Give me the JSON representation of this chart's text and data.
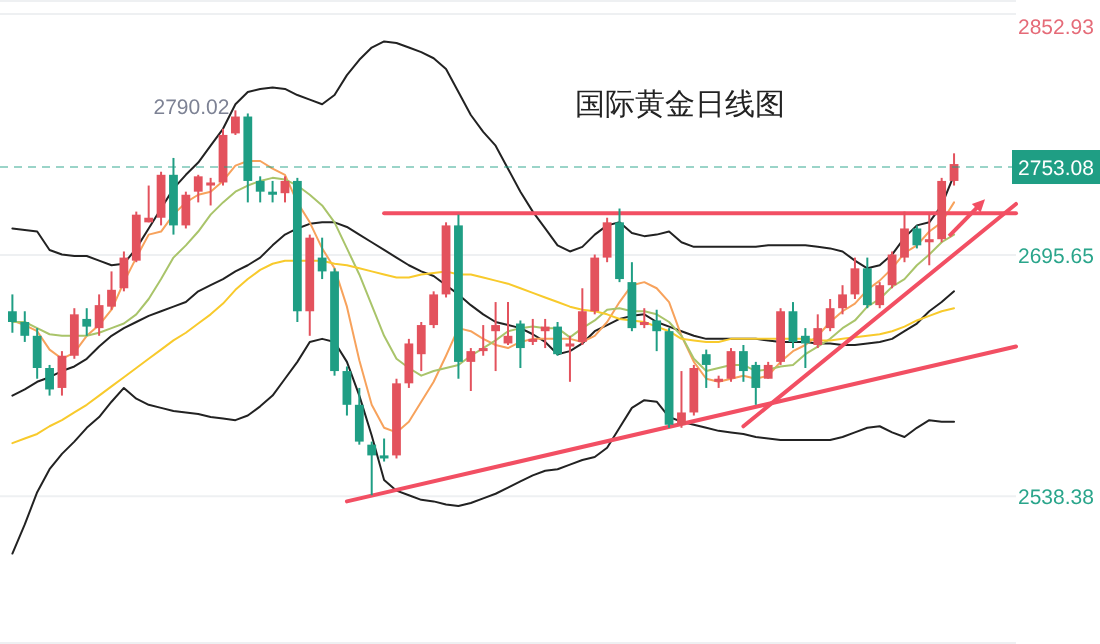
{
  "chart_data": {
    "type": "candlestick",
    "title": "国际黄金日线图",
    "categories": [
      null,
      null,
      null,
      null,
      null,
      null,
      null,
      null,
      null,
      null,
      null,
      null,
      null,
      null,
      null,
      null,
      null,
      null,
      null,
      null,
      null,
      null,
      null,
      null,
      null,
      null,
      null,
      null,
      null,
      null,
      null,
      null,
      null,
      null,
      null,
      null,
      null,
      null,
      null,
      null,
      null,
      null,
      null,
      null,
      null,
      null,
      null,
      null,
      null,
      null,
      null,
      null,
      null,
      null,
      null,
      null,
      null,
      null,
      null,
      null,
      null,
      null,
      null,
      null,
      null,
      null,
      null,
      null,
      null,
      null,
      null,
      null,
      null,
      null,
      null,
      null,
      null,
      null,
      null,
      null,
      null,
      null
    ],
    "ohlc": [
      [
        2659,
        2670,
        2645,
        2652
      ],
      [
        2652,
        2659,
        2639,
        2643
      ],
      [
        2643,
        2648,
        2615,
        2622
      ],
      [
        2622,
        2624,
        2604,
        2608
      ],
      [
        2609,
        2633,
        2604,
        2630
      ],
      [
        2630,
        2661,
        2628,
        2657
      ],
      [
        2654,
        2661,
        2643,
        2649
      ],
      [
        2648,
        2670,
        2643,
        2663
      ],
      [
        2662,
        2685,
        2660,
        2673
      ],
      [
        2674,
        2698,
        2672,
        2694
      ],
      [
        2692,
        2724,
        2691,
        2722
      ],
      [
        2717,
        2741,
        2717,
        2720
      ],
      [
        2720,
        2750,
        2715,
        2748
      ],
      [
        2748,
        2759,
        2709,
        2715
      ],
      [
        2715,
        2737,
        2713,
        2735
      ],
      [
        2737,
        2748,
        2730,
        2747
      ],
      [
        2741,
        2746,
        2728,
        2743
      ],
      [
        2743,
        2778,
        2741,
        2774
      ],
      [
        2775,
        2790.02,
        2774,
        2786
      ],
      [
        2786,
        2788,
        2730,
        2744
      ],
      [
        2744,
        2747,
        2730,
        2737
      ],
      [
        2737,
        2744,
        2730,
        2735
      ],
      [
        2736,
        2747,
        2730,
        2744
      ],
      [
        2744,
        2746,
        2652,
        2659
      ],
      [
        2659,
        2709,
        2643,
        2707
      ],
      [
        2694,
        2707,
        2680,
        2685
      ],
      [
        2685,
        2687,
        2617,
        2620
      ],
      [
        2620,
        2623,
        2591,
        2598
      ],
      [
        2598,
        2609,
        2572,
        2574
      ],
      [
        2572,
        2574,
        2539,
        2565
      ],
      [
        2565,
        2576,
        2561,
        2563
      ],
      [
        2565,
        2615,
        2563,
        2612
      ],
      [
        2612,
        2641,
        2609,
        2638
      ],
      [
        2631,
        2652,
        2620,
        2650
      ],
      [
        2650,
        2672,
        2648,
        2670
      ],
      [
        2670,
        2717,
        2668,
        2715
      ],
      [
        2715,
        2722,
        2615,
        2626
      ],
      [
        2626,
        2635,
        2607,
        2633
      ],
      [
        2633,
        2650,
        2630,
        2635
      ],
      [
        2646,
        2665,
        2620,
        2650
      ],
      [
        2638,
        2665,
        2637,
        2643
      ],
      [
        2651,
        2653,
        2622,
        2635
      ],
      [
        2639,
        2654,
        2637,
        2641
      ],
      [
        2646,
        2654,
        2635,
        2649
      ],
      [
        2649,
        2652,
        2630,
        2631
      ],
      [
        2636,
        2643,
        2613,
        2638
      ],
      [
        2639,
        2674,
        2637,
        2659
      ],
      [
        2659,
        2696,
        2657,
        2694
      ],
      [
        2694,
        2720,
        2691,
        2717
      ],
      [
        2717,
        2726,
        2678,
        2680
      ],
      [
        2678,
        2691,
        2646,
        2648
      ],
      [
        2650,
        2661,
        2648,
        2652
      ],
      [
        2653,
        2660,
        2633,
        2646
      ],
      [
        2646,
        2648,
        2583,
        2585
      ],
      [
        2585,
        2620,
        2583,
        2593
      ],
      [
        2593,
        2624,
        2591,
        2622
      ],
      [
        2631,
        2634,
        2609,
        2624
      ],
      [
        2613,
        2617,
        2609,
        2615
      ],
      [
        2615,
        2635,
        2613,
        2633
      ],
      [
        2633,
        2637,
        2613,
        2620
      ],
      [
        2624,
        2626,
        2598,
        2609
      ],
      [
        2615,
        2626,
        2615,
        2624
      ],
      [
        2626,
        2661,
        2624,
        2659
      ],
      [
        2659,
        2665,
        2635,
        2639
      ],
      [
        2643,
        2648,
        2622,
        2638
      ],
      [
        2637,
        2657,
        2635,
        2648
      ],
      [
        2648,
        2667,
        2646,
        2661
      ],
      [
        2661,
        2676,
        2657,
        2670
      ],
      [
        2670,
        2694,
        2667,
        2687
      ],
      [
        2687,
        2694,
        2661,
        2663
      ],
      [
        2663,
        2678,
        2661,
        2676
      ],
      [
        2676,
        2698,
        2674,
        2696
      ],
      [
        2694,
        2724,
        2691,
        2713
      ],
      [
        2713,
        2715,
        2700,
        2702
      ],
      [
        2704,
        2722,
        2689,
        2706
      ],
      [
        2706,
        2746,
        2704,
        2744
      ],
      [
        2744,
        2762,
        2741,
        2755
      ],
      null,
      null,
      null,
      null,
      null
    ],
    "colors": [
      "#1f9e84",
      "#1f9e84",
      "#1f9e84",
      "#1f9e84",
      "#e3525d",
      "#e3525d",
      "#1f9e84",
      "#e3525d",
      "#e3525d",
      "#e3525d",
      "#e3525d",
      "#e3525d",
      "#e3525d",
      "#1f9e84",
      "#e3525d",
      "#e3525d",
      "#e3525d",
      "#e3525d",
      "#e3525d",
      "#1f9e84",
      "#1f9e84",
      "#1f9e84",
      "#e3525d",
      "#1f9e84",
      "#e3525d",
      "#1f9e84",
      "#1f9e84",
      "#1f9e84",
      "#1f9e84",
      "#1f9e84",
      "#1f9e84",
      "#e3525d",
      "#e3525d",
      "#e3525d",
      "#e3525d",
      "#e3525d",
      "#1f9e84",
      "#e3525d",
      "#e3525d",
      "#e3525d",
      "#e3525d",
      "#1f9e84",
      "#e3525d",
      "#e3525d",
      "#1f9e84",
      "#e3525d",
      "#e3525d",
      "#e3525d",
      "#e3525d",
      "#1f9e84",
      "#1f9e84",
      "#e3525d",
      "#1f9e84",
      "#1f9e84",
      "#e3525d",
      "#e3525d",
      "#1f9e84",
      "#e3525d",
      "#e3525d",
      "#1f9e84",
      "#1f9e84",
      "#e3525d",
      "#e3525d",
      "#1f9e84",
      "#1f9e84",
      "#e3525d",
      "#e3525d",
      "#e3525d",
      "#e3525d",
      "#1f9e84",
      "#e3525d",
      "#e3525d",
      "#e3525d",
      "#1f9e84",
      "#e3525d",
      "#e3525d",
      "#e3525d",
      null,
      null,
      null,
      null,
      null
    ],
    "series": [
      {
        "type": "line",
        "color": "#222222",
        "values": [
          2713,
          2712,
          2711,
          2699,
          2696,
          2695,
          2695,
          2692,
          2689,
          2690,
          2700,
          2713,
          2726,
          2739,
          2748,
          2756,
          2767,
          2778,
          2794,
          2802,
          2804,
          2805,
          2804,
          2800,
          2797,
          2794,
          2800,
          2813,
          2823,
          2831,
          2835,
          2834,
          2831,
          2828,
          2824,
          2817,
          2802,
          2787,
          2776,
          2767,
          2752,
          2737,
          2724,
          2713,
          2702,
          2698,
          2701,
          2709,
          2715,
          2717,
          2710,
          2708,
          2709,
          2711,
          2704,
          2701,
          2701,
          2701,
          2701,
          2701,
          2701,
          2702,
          2702,
          2702,
          2702,
          2701,
          2700,
          2698,
          2692,
          2687,
          2689,
          2696,
          2707,
          2715,
          2717,
          2728,
          2748,
          null,
          null,
          null,
          null,
          null
        ]
      },
      {
        "type": "line",
        "color": "#222222",
        "values": [
          2604,
          2608,
          2613,
          2616,
          2620,
          2623,
          2628,
          2636,
          2643,
          2648,
          2652,
          2656,
          2659,
          2662,
          2665,
          2672,
          2676,
          2680,
          2685,
          2689,
          2694,
          2702,
          2709,
          2713,
          2716,
          2717,
          2717,
          2714,
          2709,
          2704,
          2699,
          2694,
          2689,
          2685,
          2682,
          2676,
          2670,
          2663,
          2657,
          2652,
          2650,
          2648,
          2644,
          2639,
          2631,
          2633,
          2638,
          2646,
          2650,
          2654,
          2656,
          2657,
          2652,
          2649,
          2646,
          2643,
          2641,
          2641,
          2641,
          2641,
          2641,
          2640,
          2639,
          2639,
          2639,
          2638,
          2638,
          2637,
          2637,
          2638,
          2639,
          2641,
          2646,
          2651,
          2659,
          2665,
          2672,
          null,
          null,
          null,
          null,
          null
        ]
      },
      {
        "type": "line",
        "color": "#222222",
        "values": [
          2501,
          2520,
          2541,
          2556,
          2566,
          2574,
          2583,
          2590,
          2600,
          2609,
          2602,
          2598,
          2596,
          2594,
          2593,
          2592,
          2590,
          2589,
          2588,
          2591,
          2597,
          2604,
          2615,
          2626,
          2639,
          2641,
          2639,
          2626,
          2604,
          2578,
          2549,
          2542,
          2539,
          2536,
          2535,
          2533,
          2532,
          2534,
          2537,
          2540,
          2544,
          2548,
          2552,
          2555,
          2556,
          2559,
          2562,
          2564,
          2570,
          2583,
          2596,
          2601,
          2600,
          2590,
          2587,
          2585,
          2583,
          2581,
          2580,
          2579,
          2577,
          2576,
          2575,
          2575,
          2575,
          2575,
          2575,
          2577,
          2580,
          2583,
          2584,
          2580,
          2577,
          2583,
          2588,
          2587,
          2587,
          null,
          null,
          null,
          null,
          null
        ]
      },
      {
        "type": "line",
        "color": "#f7a25c",
        "values": [
          2653,
          2650,
          2646,
          2634,
          2628,
          2632,
          2643,
          2650,
          2660,
          2678,
          2694,
          2709,
          2711,
          2722,
          2730,
          2735,
          2737,
          2744,
          2754,
          2757,
          2757,
          2752,
          2748,
          2730,
          2717,
          2700,
          2687,
          2662,
          2627,
          2598,
          2583,
          2580,
          2587,
          2600,
          2613,
          2630,
          2648,
          2646,
          2641,
          2637,
          2635,
          2639,
          2641,
          2641,
          2641,
          2641,
          2639,
          2643,
          2652,
          2665,
          2676,
          2678,
          2674,
          2665,
          2643,
          2626,
          2615,
          2613,
          2615,
          2617,
          2615,
          2617,
          2626,
          2633,
          2637,
          2643,
          2652,
          2659,
          2664,
          2673,
          2679,
          2687,
          2697,
          2702,
          2711,
          2717,
          2730,
          null,
          null,
          null,
          null,
          null
        ]
      },
      {
        "type": "line",
        "color": "#a9c46a",
        "values": [
          2652,
          2652,
          2648,
          2644,
          2643,
          2643,
          2643,
          2645,
          2648,
          2651,
          2657,
          2667,
          2680,
          2694,
          2702,
          2711,
          2722,
          2730,
          2737,
          2741,
          2744,
          2746,
          2745,
          2741,
          2735,
          2728,
          2717,
          2700,
          2683,
          2663,
          2643,
          2628,
          2622,
          2617,
          2620,
          2622,
          2624,
          2630,
          2635,
          2640,
          2646,
          2648,
          2649,
          2648,
          2648,
          2642,
          2648,
          2653,
          2660,
          2661,
          2659,
          2659,
          2657,
          2652,
          2643,
          2628,
          2620,
          2622,
          2624,
          2624,
          2620,
          2621,
          2623,
          2624,
          2631,
          2636,
          2641,
          2648,
          2653,
          2662,
          2667,
          2675,
          2680,
          2689,
          2696,
          2704,
          2709,
          null,
          null,
          null,
          null,
          null
        ]
      },
      {
        "type": "line",
        "color": "#f8ca2c",
        "values": [
          2573,
          2576,
          2579,
          2584,
          2588,
          2593,
          2598,
          2604,
          2610,
          2616,
          2622,
          2628,
          2634,
          2640,
          2645,
          2651,
          2657,
          2664,
          2673,
          2680,
          2686,
          2690,
          2692,
          2692,
          2692,
          2692,
          2690,
          2689,
          2687,
          2685,
          2683,
          2681,
          2681,
          2683,
          2684,
          2685,
          2683,
          2683,
          2681,
          2679,
          2677,
          2674,
          2671,
          2668,
          2665,
          2662,
          2660,
          2659,
          2657,
          2654,
          2653,
          2652,
          2649,
          2646,
          2641,
          2640,
          2639,
          2639,
          2641,
          2641,
          2641,
          2641,
          2641,
          2641,
          2641,
          2640,
          2640,
          2641,
          2642,
          2643,
          2644,
          2646,
          2649,
          2653,
          2656,
          2659,
          2661,
          null,
          null,
          null,
          null,
          null
        ]
      },
      {
        "type": "line",
        "color": "#f24f63",
        "values": [
          null,
          null,
          null,
          null,
          null,
          null,
          null,
          null,
          null,
          null,
          null,
          null,
          null,
          null,
          null,
          null,
          null,
          null,
          null,
          null,
          null,
          null,
          null,
          null,
          null,
          null,
          null,
          null,
          null,
          null,
          2723,
          null,
          null,
          null,
          null,
          null,
          null,
          null,
          null,
          null,
          null,
          null,
          null,
          null,
          null,
          null,
          null,
          null,
          null,
          null,
          null,
          null,
          null,
          null,
          null,
          null,
          null,
          null,
          null,
          null,
          null,
          null,
          null,
          null,
          null,
          null,
          null,
          null,
          null,
          null,
          null,
          null,
          null,
          null,
          null,
          null,
          null,
          null,
          null,
          null,
          null,
          2723
        ]
      },
      {
        "type": "line",
        "color": "#f24f63",
        "values": [
          null,
          null,
          null,
          null,
          null,
          null,
          null,
          null,
          null,
          null,
          null,
          null,
          null,
          null,
          null,
          null,
          null,
          null,
          null,
          null,
          null,
          null,
          null,
          null,
          null,
          null,
          null,
          2535,
          null,
          null,
          null,
          null,
          null,
          null,
          null,
          null,
          null,
          null,
          null,
          null,
          null,
          null,
          null,
          null,
          null,
          null,
          null,
          null,
          null,
          null,
          null,
          null,
          null,
          null,
          null,
          null,
          null,
          null,
          null,
          null,
          null,
          null,
          null,
          null,
          null,
          null,
          null,
          null,
          null,
          null,
          null,
          null,
          null,
          null,
          null,
          null,
          null,
          null,
          null,
          null,
          null,
          2636
        ]
      },
      {
        "type": "line",
        "color": "#f24f63",
        "values": [
          null,
          null,
          null,
          null,
          null,
          null,
          null,
          null,
          null,
          null,
          null,
          null,
          null,
          null,
          null,
          null,
          null,
          null,
          null,
          null,
          null,
          null,
          null,
          null,
          null,
          null,
          null,
          null,
          null,
          null,
          null,
          null,
          null,
          null,
          null,
          null,
          null,
          null,
          null,
          null,
          null,
          null,
          null,
          null,
          null,
          null,
          null,
          null,
          null,
          null,
          null,
          null,
          null,
          null,
          null,
          null,
          null,
          null,
          null,
          2584,
          null,
          null,
          null,
          null,
          null,
          null,
          null,
          null,
          null,
          null,
          null,
          null,
          null,
          null,
          null,
          null,
          null,
          null,
          null,
          null,
          null,
          2729
        ]
      }
    ],
    "ylim": [
      2442,
      2862
    ],
    "yticks": [
      2538.38,
      2695.65,
      2852.93
    ],
    "grid": "y",
    "tick_labels": "y",
    "ref_lines": [
      {
        "axis": "y",
        "value": 2753.08,
        "label": "2753.08",
        "color": "#1f9e84",
        "line_style": "dashed"
      }
    ],
    "annotations": [
      "2790.02"
    ]
  }
}
